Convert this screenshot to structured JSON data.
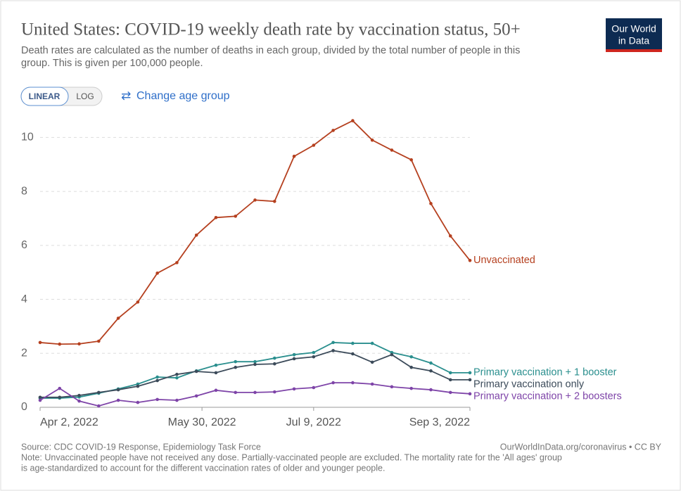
{
  "chart_data": {
    "type": "line",
    "title": "United States: COVID-19 weekly death rate by vaccination status, 50+",
    "subtitle": [
      "Death rates are calculated as the number of deaths in each group, divided by the total number of people in this",
      "group. This is given per 100,000 people."
    ],
    "logo": [
      "Our World",
      "in Data"
    ],
    "scale_buttons": [
      "LINEAR",
      "LOG"
    ],
    "change_button": "Change age group",
    "x": [
      "2022-04-02",
      "2022-04-09",
      "2022-04-16",
      "2022-04-23",
      "2022-04-30",
      "2022-05-07",
      "2022-05-14",
      "2022-05-21",
      "2022-05-28",
      "2022-06-04",
      "2022-06-11",
      "2022-06-18",
      "2022-06-25",
      "2022-07-02",
      "2022-07-09",
      "2022-07-16",
      "2022-07-23",
      "2022-07-30",
      "2022-08-06",
      "2022-08-13",
      "2022-08-20",
      "2022-08-27",
      "2022-09-03"
    ],
    "xlim": [
      "2022-04-02",
      "2022-09-03"
    ],
    "xticks": [
      {
        "value": "2022-04-02",
        "label": "Apr 2, 2022"
      },
      {
        "value": "2022-05-30",
        "label": "May 30, 2022"
      },
      {
        "value": "2022-07-09",
        "label": "Jul 9, 2022"
      },
      {
        "value": "2022-09-03",
        "label": "Sep 3, 2022"
      }
    ],
    "ylim": [
      0,
      11
    ],
    "yticks": [
      0,
      2,
      4,
      6,
      8,
      10
    ],
    "grid": true,
    "series": [
      {
        "name": "Unvaccinated",
        "color": "#b5401f",
        "values": [
          2.4,
          2.34,
          2.35,
          2.45,
          3.3,
          3.9,
          4.97,
          5.36,
          6.38,
          7.03,
          7.08,
          7.68,
          7.63,
          9.3,
          9.71,
          10.26,
          10.62,
          9.9,
          9.53,
          9.17,
          7.55,
          6.35,
          5.44
        ]
      },
      {
        "name": "Primary vaccination + 1 booster",
        "color": "#2a8f8e",
        "values": [
          0.34,
          0.34,
          0.38,
          0.52,
          0.68,
          0.86,
          1.12,
          1.09,
          1.35,
          1.56,
          1.69,
          1.69,
          1.82,
          1.95,
          2.03,
          2.4,
          2.37,
          2.37,
          2.03,
          1.87,
          1.64,
          1.28,
          1.28
        ]
      },
      {
        "name": "Primary vaccination only",
        "color": "#3c4b5a",
        "values": [
          0.37,
          0.37,
          0.44,
          0.55,
          0.65,
          0.78,
          0.99,
          1.22,
          1.33,
          1.28,
          1.48,
          1.59,
          1.61,
          1.8,
          1.87,
          2.1,
          1.98,
          1.67,
          1.95,
          1.48,
          1.35,
          1.02,
          1.02
        ]
      },
      {
        "name": "Primary vaccination + 2 boosters",
        "color": "#7e44a8",
        "values": [
          0.26,
          0.7,
          0.23,
          0.05,
          0.26,
          0.18,
          0.29,
          0.26,
          0.42,
          0.63,
          0.55,
          0.55,
          0.57,
          0.68,
          0.73,
          0.91,
          0.91,
          0.86,
          0.76,
          0.7,
          0.65,
          0.55,
          0.5
        ]
      }
    ],
    "source": "Source: CDC COVID-19 Response, Epidemiology Task Force",
    "url": "OurWorldInData.org/coronavirus • CC BY",
    "note": [
      "Note: Unvaccinated people have not received any dose. Partially-vaccinated people are excluded. The mortality rate for the 'All ages' group",
      "is age-standardized to account for the different vaccination rates of older and younger people."
    ]
  }
}
